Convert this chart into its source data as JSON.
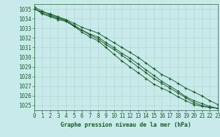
{
  "title": "Graphe pression niveau de la mer (hPa)",
  "bg_color": "#c8eaea",
  "grid_color": "#b0d8d0",
  "line_color": "#1a5c2a",
  "xlim": [
    0,
    23
  ],
  "ylim": [
    1024.5,
    1035.5
  ],
  "yticks": [
    1025,
    1026,
    1027,
    1028,
    1029,
    1030,
    1031,
    1032,
    1033,
    1034,
    1035
  ],
  "xticks": [
    0,
    1,
    2,
    3,
    4,
    5,
    6,
    7,
    8,
    9,
    10,
    11,
    12,
    13,
    14,
    15,
    16,
    17,
    18,
    19,
    20,
    21,
    22,
    23
  ],
  "series": [
    [
      1035.0,
      1034.7,
      1034.5,
      1034.2,
      1033.9,
      1033.5,
      1033.1,
      1032.8,
      1032.5,
      1032.0,
      1031.5,
      1031.0,
      1030.5,
      1030.0,
      1029.4,
      1028.8,
      1028.2,
      1027.8,
      1027.3,
      1026.8,
      1026.4,
      1026.0,
      1025.5,
      1025.1
    ],
    [
      1035.0,
      1034.6,
      1034.3,
      1034.0,
      1033.8,
      1033.3,
      1032.8,
      1032.4,
      1032.1,
      1031.5,
      1031.0,
      1030.4,
      1029.9,
      1029.3,
      1028.7,
      1028.1,
      1027.5,
      1027.0,
      1026.5,
      1025.9,
      1025.5,
      1025.2,
      1024.9,
      1024.7
    ],
    [
      1035.1,
      1034.5,
      1034.2,
      1033.9,
      1033.7,
      1033.2,
      1032.8,
      1032.3,
      1031.9,
      1031.3,
      1030.8,
      1030.2,
      1029.6,
      1029.0,
      1028.4,
      1027.8,
      1027.3,
      1026.8,
      1026.3,
      1025.8,
      1025.3,
      1025.0,
      1024.8,
      1024.7
    ],
    [
      1035.2,
      1034.8,
      1034.4,
      1034.1,
      1033.8,
      1033.2,
      1032.6,
      1032.1,
      1031.7,
      1031.0,
      1030.3,
      1029.6,
      1029.0,
      1028.4,
      1027.8,
      1027.2,
      1026.8,
      1026.4,
      1025.9,
      1025.5,
      1025.1,
      1024.9,
      1024.8,
      1024.7
    ]
  ]
}
